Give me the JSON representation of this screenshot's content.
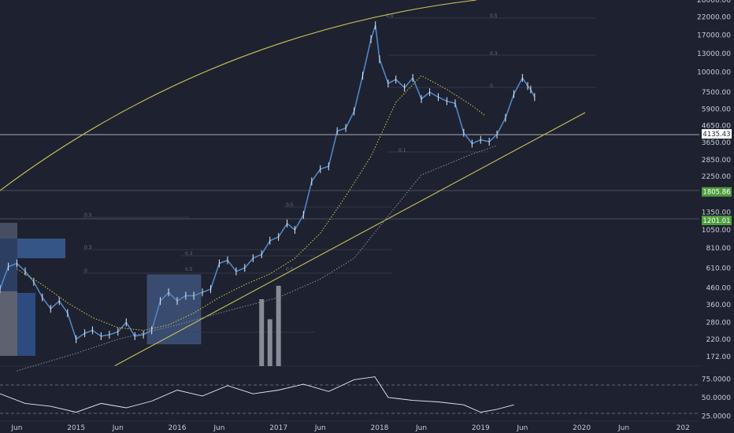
{
  "chart_data": [
    {
      "type": "line",
      "panel": "price",
      "y_scale": "log",
      "ylim": [
        150,
        28000
      ],
      "xlim": [
        "2014-04-01",
        "2021-03-01"
      ],
      "y_ticks": [
        "28000.00",
        "22000.00",
        "17000.00",
        "13000.00",
        "10000.00",
        "7500.00",
        "5900.00",
        "4650.00",
        "3650.00",
        "2850.00",
        "2250.00",
        "1350.00",
        "1050.00",
        "810.00",
        "610.00",
        "460.00",
        "360.00",
        "280.00",
        "220.00",
        "172.00"
      ],
      "x_ticks": [
        {
          "date": "2014-06-01",
          "label": "Jun"
        },
        {
          "date": "2015-01-01",
          "label": "2015"
        },
        {
          "date": "2015-06-01",
          "label": "Jun"
        },
        {
          "date": "2016-01-01",
          "label": "2016"
        },
        {
          "date": "2016-06-01",
          "label": "Jun"
        },
        {
          "date": "2017-01-01",
          "label": "2017"
        },
        {
          "date": "2017-06-01",
          "label": "Jun"
        },
        {
          "date": "2018-01-01",
          "label": "2018"
        },
        {
          "date": "2018-06-01",
          "label": "Jun"
        },
        {
          "date": "2019-01-01",
          "label": "2019"
        },
        {
          "date": "2019-06-01",
          "label": "Jun"
        },
        {
          "date": "2020-01-01",
          "label": "2020"
        },
        {
          "date": "2020-06-01",
          "label": "Jun"
        },
        {
          "date": "2021-01-01",
          "label": "202"
        }
      ],
      "series": [
        {
          "color": "#4f86c6",
          "x": [
            "2014-04-01",
            "2014-05-01",
            "2014-06-01",
            "2014-07-01",
            "2014-08-01",
            "2014-09-01",
            "2014-10-01",
            "2014-11-01",
            "2014-12-01",
            "2015-01-01",
            "2015-02-01",
            "2015-03-01",
            "2015-04-01",
            "2015-05-01",
            "2015-06-01",
            "2015-07-01",
            "2015-08-01",
            "2015-09-01",
            "2015-10-01",
            "2015-11-01",
            "2015-12-01",
            "2016-01-01",
            "2016-02-01",
            "2016-03-01",
            "2016-04-01",
            "2016-05-01",
            "2016-06-01",
            "2016-07-01",
            "2016-08-01",
            "2016-09-01",
            "2016-10-01",
            "2016-11-01",
            "2016-12-01",
            "2017-01-01",
            "2017-02-01",
            "2017-03-01",
            "2017-04-01",
            "2017-05-01",
            "2017-06-01",
            "2017-07-01",
            "2017-08-01",
            "2017-09-01",
            "2017-10-01",
            "2017-11-01",
            "2017-12-01",
            "2017-12-17",
            "2018-01-01",
            "2018-02-01",
            "2018-03-01",
            "2018-04-01",
            "2018-05-01",
            "2018-06-01",
            "2018-07-01",
            "2018-08-01",
            "2018-09-01",
            "2018-10-01",
            "2018-11-01",
            "2018-12-01",
            "2019-01-01",
            "2019-02-01",
            "2019-03-01",
            "2019-04-01",
            "2019-05-01",
            "2019-06-01",
            "2019-06-20",
            "2019-07-01",
            "2019-07-15"
          ],
          "y": [
            450,
            620,
            650,
            580,
            500,
            400,
            340,
            380,
            320,
            220,
            240,
            250,
            230,
            235,
            245,
            280,
            230,
            235,
            250,
            380,
            430,
            380,
            410,
            410,
            430,
            450,
            650,
            680,
            580,
            610,
            700,
            740,
            900,
            950,
            1150,
            1050,
            1300,
            2100,
            2500,
            2600,
            4300,
            4500,
            5700,
            9500,
            16000,
            19500,
            12000,
            8500,
            9000,
            8000,
            9200,
            6800,
            7500,
            7000,
            6600,
            6400,
            4200,
            3600,
            3800,
            3700,
            4100,
            5200,
            7300,
            9200,
            8200,
            7800,
            7000
          ]
        },
        {
          "color": "#d4cc3e",
          "style": "dotted",
          "x": [
            "2014-06-01",
            "2014-09-01",
            "2014-12-01",
            "2015-03-01",
            "2015-06-01",
            "2015-09-01",
            "2015-12-01",
            "2016-03-01",
            "2016-06-01",
            "2016-09-01",
            "2016-12-01",
            "2017-03-01",
            "2017-06-01",
            "2017-09-01",
            "2017-12-01",
            "2018-03-01",
            "2018-06-01",
            "2018-09-01",
            "2018-12-01",
            "2019-01-15"
          ],
          "y": [
            600,
            480,
            370,
            300,
            260,
            250,
            270,
            320,
            400,
            480,
            560,
            700,
            1000,
            1700,
            3000,
            6500,
            9500,
            7800,
            6200,
            5400
          ]
        },
        {
          "color": "#8c90a0",
          "style": "dotted",
          "x": [
            "2014-06-01",
            "2015-01-01",
            "2015-06-01",
            "2016-01-01",
            "2016-06-01",
            "2017-01-01",
            "2017-06-01",
            "2017-10-01",
            "2018-01-01",
            "2018-06-01",
            "2018-12-01",
            "2019-03-01"
          ],
          "y": [
            140,
            180,
            220,
            270,
            320,
            400,
            520,
            700,
            1100,
            2300,
            3100,
            3500
          ]
        }
      ],
      "horizontal_levels": [
        {
          "price": 4135.43,
          "label": "4135.43"
        },
        {
          "price": 1805.86,
          "label": "1805.86"
        },
        {
          "price": 1201.01,
          "label": "1201.01"
        }
      ],
      "level_tag_color": "#4d9c3c",
      "current_tag_color": "#ffffff"
    },
    {
      "type": "bar",
      "panel": "volume",
      "x": [
        "2016-11-01",
        "2016-12-01",
        "2017-01-01"
      ],
      "values": [
        1.0,
        0.7,
        1.2
      ],
      "note_values_relative": "",
      "color": "#9a9da8"
    },
    {
      "type": "line",
      "panel": "rsi",
      "ylim": [
        20,
        85
      ],
      "y_ticks": [
        "75.0000",
        "50.0000",
        "25.0000"
      ],
      "color": "#e8e9ee",
      "x": [
        "2014-04-01",
        "2014-07-01",
        "2014-10-01",
        "2015-01-01",
        "2015-04-01",
        "2015-07-01",
        "2015-10-01",
        "2016-01-01",
        "2016-04-01",
        "2016-07-01",
        "2016-10-01",
        "2017-01-01",
        "2017-04-01",
        "2017-07-01",
        "2017-10-01",
        "2017-12-15",
        "2018-02-01",
        "2018-05-01",
        "2018-08-01",
        "2018-11-01",
        "2019-01-01",
        "2019-03-01",
        "2019-05-01"
      ],
      "values": [
        55,
        42,
        38,
        30,
        42,
        36,
        45,
        60,
        52,
        66,
        55,
        60,
        68,
        58,
        74,
        78,
        50,
        46,
        44,
        40,
        30,
        34,
        40
      ]
    }
  ]
}
